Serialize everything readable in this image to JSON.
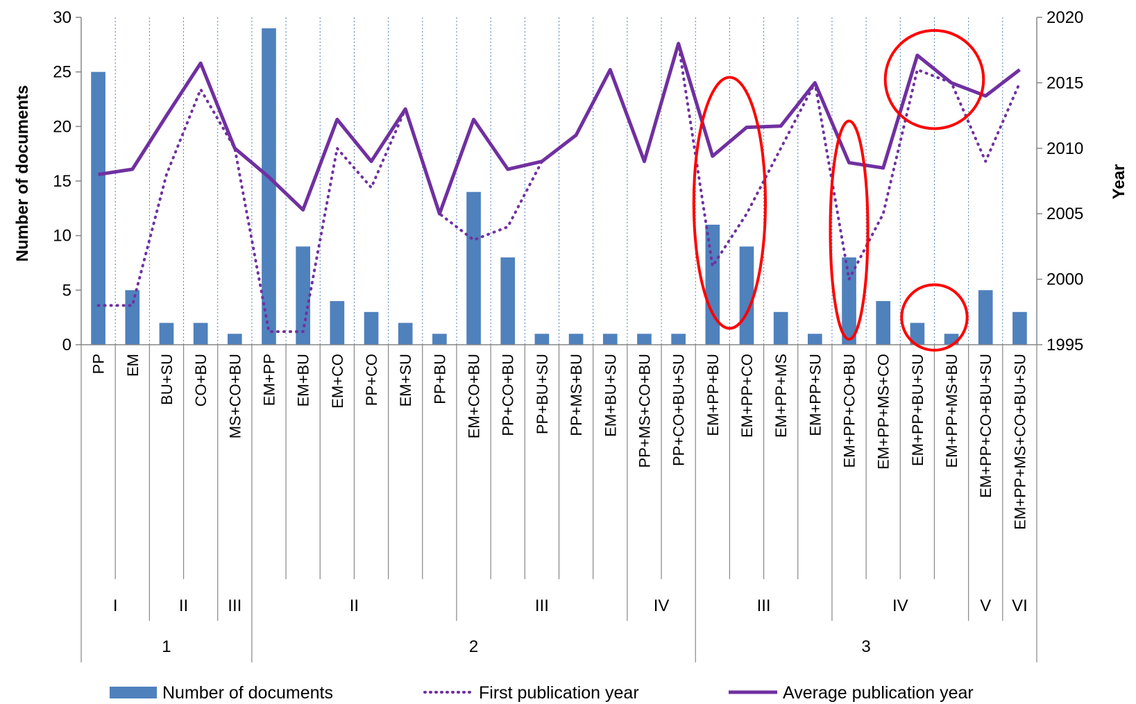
{
  "chart_data": {
    "type": "bar+line",
    "categories": [
      "PP",
      "EM",
      "BU+SU",
      "CO+BU",
      "MS+CO+BU",
      "EM+PP",
      "EM+BU",
      "EM+CO",
      "PP+CO",
      "EM+SU",
      "PP+BU",
      "EM+CO+BU",
      "PP+CO+BU",
      "PP+BU+SU",
      "PP+MS+BU",
      "EM+BU+SU",
      "PP+MS+CO+BU",
      "PP+CO+BU+SU",
      "EM+PP+BU",
      "EM+PP+CO",
      "EM+PP+MS",
      "EM+PP+SU",
      "EM+PP+CO+BU",
      "EM+PP+MS+CO",
      "EM+PP+BU+SU",
      "EM+PP+MS+BU",
      "EM+PP+CO+BU+SU",
      "EM+PP+MS+CO+BU+SU"
    ],
    "series": [
      {
        "name": "Number of documents",
        "type": "bar",
        "axis": "left",
        "color": "#4F81BD",
        "values": [
          25,
          5,
          2,
          2,
          1,
          29,
          9,
          4,
          3,
          2,
          1,
          14,
          8,
          1,
          1,
          1,
          1,
          1,
          11,
          9,
          3,
          1,
          8,
          4,
          2,
          1,
          5,
          3
        ]
      },
      {
        "name": "First publication year",
        "type": "line",
        "style": "dotted",
        "axis": "right",
        "color": "#7030A0",
        "values": [
          1998,
          1998,
          2008,
          2014.5,
          2010,
          1996,
          1996,
          2010,
          2007,
          2013,
          2005,
          2003,
          2004,
          2009,
          2011,
          2016,
          2009,
          2018,
          2001,
          2005,
          2010,
          2015,
          2000,
          2005,
          2016,
          2015,
          2009,
          2015
        ]
      },
      {
        "name": "Average publication year",
        "type": "line",
        "style": "solid",
        "axis": "right",
        "color": "#7030A0",
        "values": [
          2008,
          2008.4,
          2012.5,
          2016.5,
          2010,
          2007.8,
          2005.3,
          2012.2,
          2009,
          2013,
          2005,
          2012.2,
          2008.4,
          2009,
          2011,
          2016,
          2009,
          2018,
          2009.4,
          2011.6,
          2011.7,
          2015,
          2008.9,
          2008.5,
          2017.1,
          2015,
          2014,
          2016
        ]
      }
    ],
    "groups_level2": [
      {
        "label": "I",
        "span": 2
      },
      {
        "label": "II",
        "span": 2
      },
      {
        "label": "III",
        "span": 1
      },
      {
        "label": "II",
        "span": 6
      },
      {
        "label": "III",
        "span": 5
      },
      {
        "label": "IV",
        "span": 2
      },
      {
        "label": "III",
        "span": 4
      },
      {
        "label": "IV",
        "span": 4
      },
      {
        "label": "V",
        "span": 1
      },
      {
        "label": "VI",
        "span": 1
      }
    ],
    "groups_level1": [
      {
        "label": "1",
        "span": 5
      },
      {
        "label": "2",
        "span": 13
      },
      {
        "label": "3",
        "span": 10
      }
    ],
    "ylabel": "Number of documents",
    "y2label": "Year",
    "ylim": [
      0,
      30
    ],
    "yticks": [
      0,
      5,
      10,
      15,
      20,
      25,
      30
    ],
    "y2lim": [
      1995,
      2020
    ],
    "y2ticks": [
      1995,
      2000,
      2005,
      2010,
      2015,
      2020
    ],
    "grid": "vertical dotted between categories",
    "legend_position": "bottom",
    "annotations": [
      {
        "shape": "ellipse",
        "color": "#FF0000",
        "covers": [
          "EM+PP+BU",
          "EM+PP+CO"
        ],
        "value_range": [
          1.5,
          24.5
        ]
      },
      {
        "shape": "ellipse",
        "color": "#FF0000",
        "covers": [
          "EM+PP+CO+BU"
        ],
        "value_range": [
          0.5,
          20.5
        ]
      },
      {
        "shape": "circle",
        "color": "#FF0000",
        "covers": [
          "EM+PP+BU+SU",
          "EM+PP+MS+BU"
        ],
        "value_range": [
          2011.5,
          2019
        ]
      },
      {
        "shape": "circle",
        "color": "#FF0000",
        "covers": [
          "EM+PP+BU+SU",
          "EM+PP+MS+BU"
        ],
        "value_range": [
          -0.5,
          5.5
        ]
      }
    ]
  }
}
